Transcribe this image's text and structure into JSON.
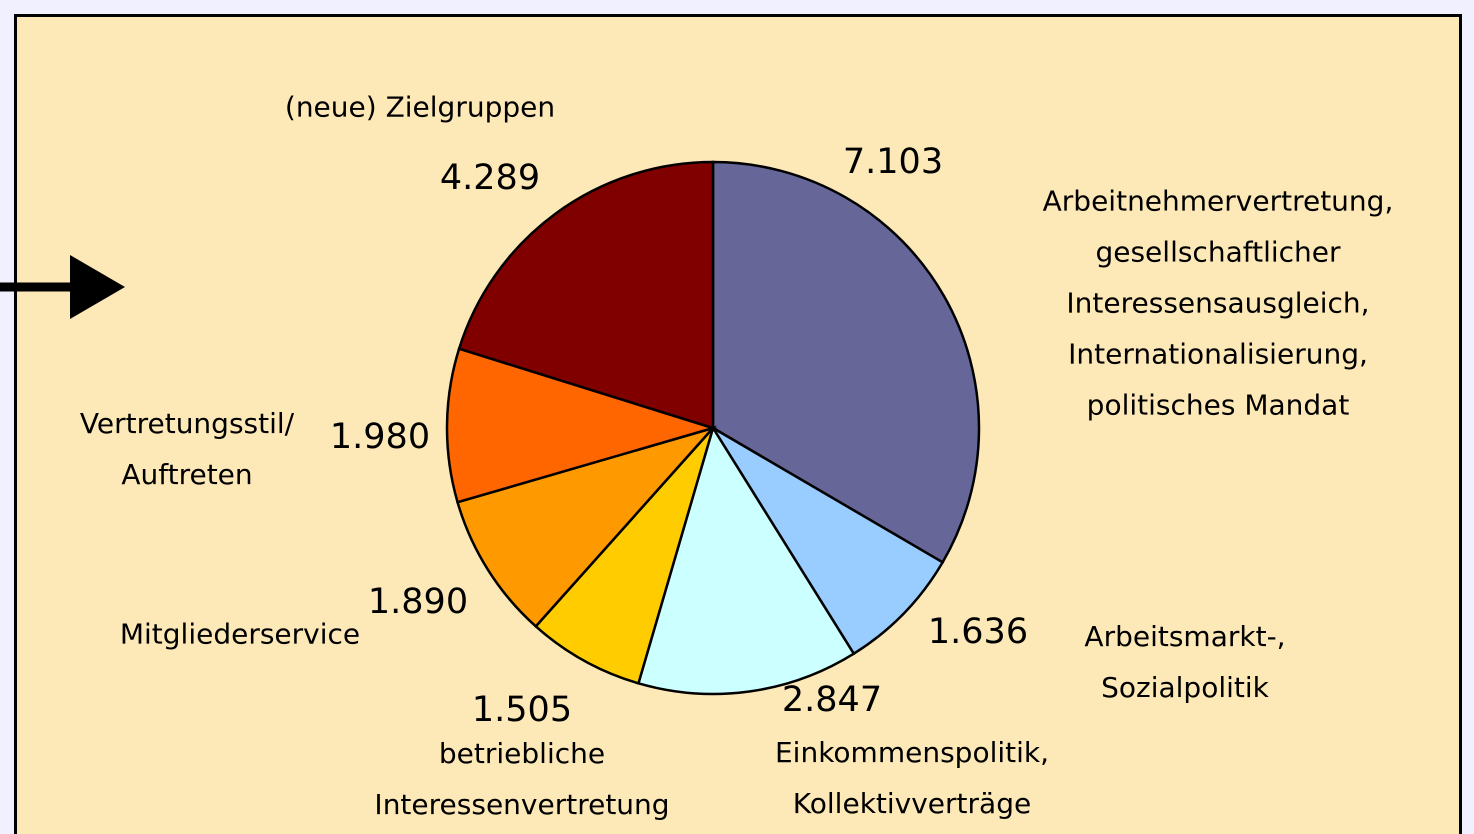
{
  "chart_data": {
    "type": "pie",
    "categories": [
      "Arbeitnehmervertretung,\ngesellschaftlicher\nInteressensausgleich,\nInternationalisierung,\npolitisches Mandat",
      "Arbeitsmarkt-, Sozialpolitik",
      "Einkommenspolitik,\nKollektivverträge",
      "betriebliche\nInteressenvertretung",
      "Mitgliederservice",
      "Vertretungsstil/\nAuftreten",
      "(neue) Zielgruppen"
    ],
    "values": [
      7103,
      1636,
      2847,
      1505,
      1890,
      1980,
      4289
    ],
    "value_labels": [
      "7.103",
      "1.636",
      "2.847",
      "1.505",
      "1.890",
      "1.980",
      "4.289"
    ],
    "colors": [
      "#666699",
      "#99ccff",
      "#ccffff",
      "#ffcc00",
      "#ff9900",
      "#ff6600",
      "#800000"
    ]
  }
}
